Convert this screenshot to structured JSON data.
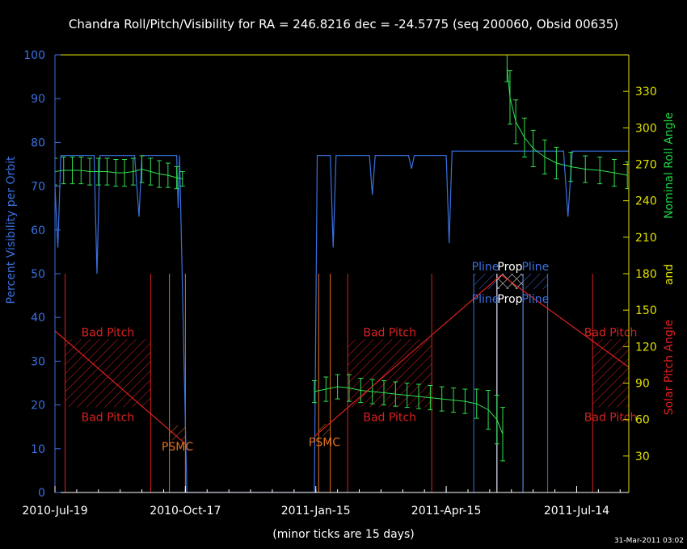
{
  "chart_data": {
    "type": "line",
    "title": "Chandra Roll/Pitch/Visibility for RA = 246.8216 dec = -24.5775 (seq 200060, Obsid 00635)",
    "ylabel": "Percent Visibility per Orbit",
    "y2label": [
      "Nominal Roll Angle",
      "and",
      "Solar Pitch Angle"
    ],
    "y2label_colors": [
      "#20d040",
      "#e0e000",
      "#e02020"
    ],
    "xnote": "(minor ticks are 15 days)",
    "timestamp": "31-Mar-2011 03:02",
    "xlim": [
      "2010-07-19",
      "2011-08-19"
    ],
    "xticks": [
      {
        "value": "2010-07-19",
        "label": "2010-Jul-19"
      },
      {
        "value": "2010-10-17",
        "label": "2010-Oct-17"
      },
      {
        "value": "2011-01-15",
        "label": "2011-Jan-15"
      },
      {
        "value": "2011-04-15",
        "label": "2011-Apr-15"
      },
      {
        "value": "2011-07-14",
        "label": "2011-Jul-14"
      }
    ],
    "ylim": [
      0,
      100
    ],
    "yticks": [
      0,
      10,
      20,
      30,
      40,
      50,
      60,
      70,
      80,
      90,
      100
    ],
    "y2lim": [
      0,
      360
    ],
    "y2ticks": [
      30,
      60,
      90,
      120,
      150,
      180,
      210,
      240,
      270,
      300,
      330
    ],
    "series": [
      {
        "type": "line",
        "color": "#3a70e0",
        "x": [
          "2010-07-19",
          "2010-07-21",
          "2010-07-23",
          "2010-08-15",
          "2010-08-17",
          "2010-08-19",
          "2010-09-12",
          "2010-09-15",
          "2010-09-17",
          "2010-10-11",
          "2010-10-12",
          "2010-10-13",
          "2010-10-18",
          "2011-01-14",
          "2011-01-16",
          "2011-01-25",
          "2011-01-27",
          "2011-01-29",
          "2011-02-21",
          "2011-02-23",
          "2011-02-25",
          "2011-03-20",
          "2011-03-22",
          "2011-03-24",
          "2011-04-15",
          "2011-04-17",
          "2011-04-19",
          "2011-07-05",
          "2011-07-08",
          "2011-07-11",
          "2011-08-19"
        ],
        "values": [
          70,
          56,
          77,
          77,
          50,
          77,
          77,
          63,
          77,
          77,
          65,
          77,
          0,
          0,
          77,
          77,
          56,
          77,
          77,
          68,
          77,
          77,
          74,
          77,
          77,
          57,
          78,
          78,
          63,
          78,
          78
        ]
      },
      {
        "type": "errorbar",
        "color": "#30e050",
        "axis": "y2",
        "x": [
          "2010-07-19",
          "2010-07-25",
          "2010-07-31",
          "2010-08-06",
          "2010-08-12",
          "2010-08-18",
          "2010-08-24",
          "2010-08-30",
          "2010-09-05",
          "2010-09-11",
          "2010-09-17",
          "2010-09-23",
          "2010-09-29",
          "2010-10-05",
          "2010-10-11",
          "2010-10-15",
          "2010-12-01",
          "2011-01-14",
          "2011-01-22",
          "2011-01-30",
          "2011-02-07",
          "2011-02-15",
          "2011-02-23",
          "2011-03-03",
          "2011-03-11",
          "2011-03-19",
          "2011-03-27",
          "2011-04-04",
          "2011-04-12",
          "2011-04-20",
          "2011-04-28",
          "2011-05-06",
          "2011-05-14",
          "2011-05-20",
          "2011-05-24",
          "2011-05-26",
          "2011-05-27",
          "2011-05-29",
          "2011-06-02",
          "2011-06-08",
          "2011-06-14",
          "2011-06-22",
          "2011-06-30",
          "2011-07-10",
          "2011-07-20",
          "2011-07-30",
          "2011-08-09",
          "2011-08-18"
        ],
        "values": [
          264,
          265,
          265,
          265,
          264,
          264,
          264,
          263,
          263,
          264,
          266,
          264,
          262,
          261,
          259,
          258,
          null,
          83,
          85,
          87,
          86,
          84,
          83,
          82,
          81,
          80,
          79,
          78,
          77,
          76,
          75,
          73,
          68,
          60,
          48,
          null,
          350,
          325,
          305,
          292,
          283,
          276,
          271,
          268,
          266,
          265,
          263,
          261
        ],
        "errors": [
          11,
          11,
          11,
          11,
          11,
          11,
          11,
          11,
          11,
          11,
          11,
          11,
          11,
          10,
          9,
          6,
          null,
          9,
          10,
          10,
          11,
          10,
          10,
          10,
          10,
          10,
          10,
          10,
          10,
          10,
          10,
          12,
          16,
          20,
          22,
          null,
          12,
          22,
          18,
          16,
          15,
          14,
          13,
          12,
          11,
          11,
          11,
          11
        ]
      },
      {
        "type": "line",
        "color": "#e02020",
        "axis": "y2",
        "x": [
          "2010-07-19",
          "2010-10-17",
          "2010-11-30",
          "2011-01-14",
          "2011-05-23",
          "2011-08-19"
        ],
        "values": [
          133,
          40,
          null,
          46,
          179,
          103
        ]
      }
    ],
    "regions": [
      {
        "labels": [
          "Bad Pitch",
          "Bad Pitch"
        ],
        "start": "2010-07-26",
        "end": "2010-09-23",
        "band": [
          19.5,
          35
        ],
        "color": "#d82020"
      },
      {
        "labels": [
          "PSMC"
        ],
        "start": "2010-10-06",
        "end": "2010-10-17",
        "band": [
          12,
          15.3
        ],
        "color": "#e07020"
      },
      {
        "labels": [
          "PSMC"
        ],
        "start": "2011-01-17",
        "end": "2011-01-25",
        "band": [
          13,
          15.7
        ],
        "color": "#e07020"
      },
      {
        "labels": [
          "Bad Pitch",
          "Bad Pitch"
        ],
        "start": "2011-02-06",
        "end": "2011-04-05",
        "band": [
          19.5,
          35
        ],
        "color": "#d82020"
      },
      {
        "labels": [
          "Pline",
          "Pline"
        ],
        "start": "2011-05-04",
        "end": "2011-05-20",
        "band": [
          46.5,
          50
        ],
        "color": "#3a70e0"
      },
      {
        "labels": [
          "Prop",
          "Prop"
        ],
        "start": "2011-05-20",
        "end": "2011-06-07",
        "band": [
          46.5,
          50
        ],
        "color": "#ffffff"
      },
      {
        "labels": [
          "Pline",
          "Pline"
        ],
        "start": "2011-06-07",
        "end": "2011-06-24",
        "band": [
          46.5,
          50
        ],
        "color": "#3a70e0"
      },
      {
        "labels": [
          "Bad Pitch",
          "Bad Pitch"
        ],
        "start": "2011-07-25",
        "end": "2011-08-19",
        "band": [
          19.5,
          35
        ],
        "color": "#d82020"
      }
    ]
  }
}
